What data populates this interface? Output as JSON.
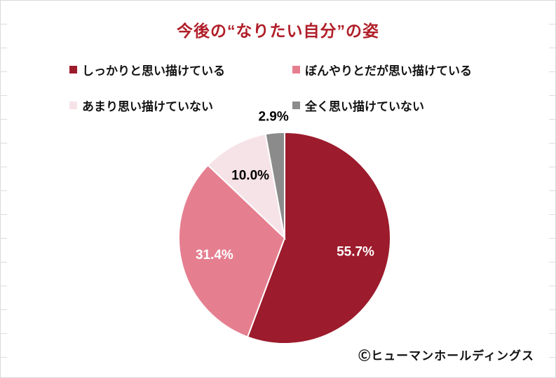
{
  "title": "今後の“なりたい自分”の姿",
  "footer": {
    "credit": "Ⓒヒューマンホールディングス"
  },
  "chart_data": {
    "type": "pie",
    "title": "今後の“なりたい自分”の姿",
    "legend_position": "top",
    "start_angle_deg": -90,
    "direction": "clockwise",
    "title_color": "#b01e28",
    "slices": [
      {
        "label": "しっかりと思い描けている",
        "value": 55.7,
        "label_text": "55.7%",
        "color": "#9c1b2c",
        "label_color": "#ffffff",
        "label_outside": false
      },
      {
        "label": "ぼんやりとだが思い描けている",
        "value": 31.4,
        "label_text": "31.4%",
        "color": "#e57f90",
        "label_color": "#ffffff",
        "label_outside": false
      },
      {
        "label": "あまり思い描けていない",
        "value": 10.0,
        "label_text": "10.0%",
        "color": "#f6e3e8",
        "label_color": "#000000",
        "label_outside": false
      },
      {
        "label": "全く思い描けていない",
        "value": 2.9,
        "label_text": "2.9%",
        "color": "#8b8b8b",
        "label_color": "#000000",
        "label_outside": true
      }
    ]
  }
}
